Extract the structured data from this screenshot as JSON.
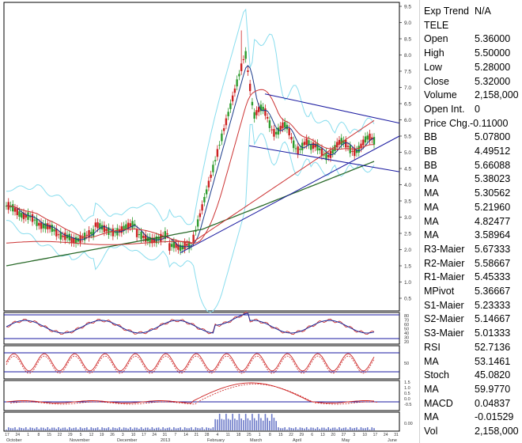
{
  "window_title": "TELE",
  "info_panel": [
    {
      "label": "Exp Trend",
      "value": "N/A"
    },
    {
      "label": "TELE",
      "value": ""
    },
    {
      "label": "Open",
      "value": "5.36000"
    },
    {
      "label": "High",
      "value": "5.50000"
    },
    {
      "label": "Low",
      "value": "5.28000"
    },
    {
      "label": "Close",
      "value": "5.32000"
    },
    {
      "label": "Volume",
      "value": "2,158,000"
    },
    {
      "label": "Open Int.",
      "value": "0"
    },
    {
      "label": "Price Chg.",
      "value": "-0.11000"
    },
    {
      "label": "BB",
      "value": "5.07800"
    },
    {
      "label": "BB",
      "value": "4.49512"
    },
    {
      "label": "BB",
      "value": "5.66088"
    },
    {
      "label": "MA",
      "value": "5.38023"
    },
    {
      "label": "MA",
      "value": "5.30562"
    },
    {
      "label": "MA",
      "value": "5.21960"
    },
    {
      "label": "MA",
      "value": "4.82477"
    },
    {
      "label": "MA",
      "value": "3.58964"
    },
    {
      "label": "R3-Maier",
      "value": "5.67333"
    },
    {
      "label": "R2-Maier",
      "value": "5.58667"
    },
    {
      "label": "R1-Maier",
      "value": "5.45333"
    },
    {
      "label": "MPivot",
      "value": "5.36667"
    },
    {
      "label": "S1-Maier",
      "value": "5.23333"
    },
    {
      "label": "S2-Maier",
      "value": "5.14667"
    },
    {
      "label": "S3-Maier",
      "value": "5.01333"
    },
    {
      "label": "RSI",
      "value": "52.7136"
    },
    {
      "label": "MA",
      "value": "53.1461"
    },
    {
      "label": "Stoch",
      "value": "45.0820"
    },
    {
      "label": "MA",
      "value": "59.9770"
    },
    {
      "label": "MACD",
      "value": "0.04837"
    },
    {
      "label": "MA",
      "value": "-0.01529"
    },
    {
      "label": "Vol",
      "value": "2,158,000"
    }
  ],
  "chart_data": {
    "type": "line",
    "price_axis_ticks": [
      "9.5",
      "9.0",
      "8.5",
      "8.0",
      "7.5",
      "7.0",
      "6.5",
      "6.0",
      "5.5",
      "5.0",
      "4.5",
      "4.0",
      "3.5",
      "3.0",
      "2.5",
      "2.0",
      "1.5",
      "1.0",
      "0.5"
    ],
    "rsi_axis_ticks": [
      "80",
      "70",
      "60",
      "50",
      "40",
      "30",
      "20"
    ],
    "stoch_axis_ticks": [
      "50"
    ],
    "macd_axis_ticks": [
      "1.5",
      "1.0",
      "0.5",
      "0.0",
      "-0.5"
    ],
    "volume_axis_ticks": [
      "0.00"
    ],
    "month_labels": [
      "October",
      "November",
      "December",
      "2013",
      "February",
      "March",
      "April",
      "May",
      "June"
    ],
    "date_ticks": [
      "17",
      "24",
      "1",
      "8",
      "15",
      "22",
      "29",
      "5",
      "12",
      "19",
      "26",
      "3",
      "10",
      "17",
      "24",
      "31",
      "7",
      "14",
      "21",
      "28",
      "4",
      "11",
      "18",
      "25",
      "1",
      "8",
      "15",
      "22",
      "29",
      "6",
      "13",
      "20",
      "27",
      "3",
      "10",
      "17",
      "24",
      "31"
    ],
    "series_colors": {
      "candle_up": "#2e9b2e",
      "candle_down": "#cc2222",
      "bollinger": "#88ddee",
      "ma_short": "#1a3a8a",
      "ma_mid": "#cc3333",
      "ma_long": "#2a6a2a",
      "trendline": "#1a1aa0",
      "rsi": "#1a2a9a",
      "rsi_ma": "#cc2222",
      "stoch": "#cc2222",
      "macd": "#cc2222",
      "volume": "#6a78c8"
    }
  }
}
